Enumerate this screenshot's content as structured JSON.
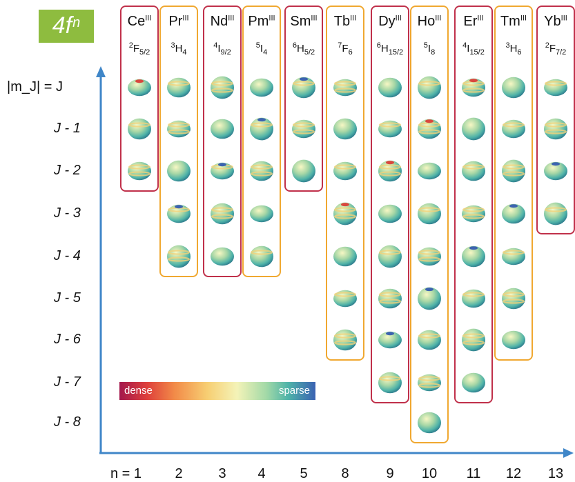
{
  "badge": {
    "base": "4f",
    "exp": "n"
  },
  "columns": [
    {
      "ion": "Ce",
      "ox": "III",
      "term_pre": "2",
      "term_L": "F",
      "term_J": "5/2",
      "n": "1",
      "rows": 3,
      "box": "#c0304a"
    },
    {
      "ion": "Pr",
      "ox": "III",
      "term_pre": "3",
      "term_L": "H",
      "term_J": "4",
      "n": "2",
      "rows": 5,
      "box": "#f0a830"
    },
    {
      "ion": "Nd",
      "ox": "III",
      "term_pre": "4",
      "term_L": "I",
      "term_J": "9/2",
      "n": "3",
      "rows": 5,
      "box": "#c0304a"
    },
    {
      "ion": "Pm",
      "ox": "III",
      "term_pre": "5",
      "term_L": "I",
      "term_J": "4",
      "n": "4",
      "rows": 5,
      "box": "#f0a830"
    },
    {
      "ion": "Sm",
      "ox": "III",
      "term_pre": "6",
      "term_L": "H",
      "term_J": "5/2",
      "n": "5",
      "rows": 3,
      "box": "#c0304a"
    },
    {
      "ion": "Tb",
      "ox": "III",
      "term_pre": "7",
      "term_L": "F",
      "term_J": "6",
      "n": "8",
      "rows": 7,
      "box": "#f0a830"
    },
    {
      "ion": "Dy",
      "ox": "III",
      "term_pre": "6",
      "term_L": "H",
      "term_J": "15/2",
      "n": "9",
      "rows": 8,
      "box": "#c0304a"
    },
    {
      "ion": "Ho",
      "ox": "III",
      "term_pre": "5",
      "term_L": "I",
      "term_J": "8",
      "n": "10",
      "rows": 9,
      "box": "#f0a830"
    },
    {
      "ion": "Er",
      "ox": "III",
      "term_pre": "4",
      "term_L": "I",
      "term_J": "15/2",
      "n": "11",
      "rows": 8,
      "box": "#c0304a"
    },
    {
      "ion": "Tm",
      "ox": "III",
      "term_pre": "3",
      "term_L": "H",
      "term_J": "6",
      "n": "12",
      "rows": 7,
      "box": "#f0a830"
    },
    {
      "ion": "Yb",
      "ox": "III",
      "term_pre": "2",
      "term_L": "F",
      "term_J": "7/2",
      "n": "13",
      "rows": 4,
      "box": "#c0304a"
    }
  ],
  "row_labels": [
    "|m_J| = J",
    "J - 1",
    "J - 2",
    "J - 3",
    "J - 4",
    "J - 5",
    "J - 6",
    "J - 7",
    "J - 8"
  ],
  "n_prefix": "n = ",
  "legend": {
    "left": "dense",
    "right": "sparse"
  },
  "axis_color": "#3f86c8"
}
